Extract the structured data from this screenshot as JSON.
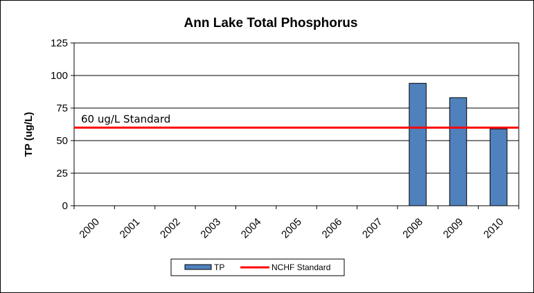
{
  "chart_data": {
    "type": "bar",
    "title": "Ann Lake Total Phosphorus",
    "xlabel": "",
    "ylabel": "TP (ug/L)",
    "categories": [
      "2000",
      "2001",
      "2002",
      "2003",
      "2004",
      "2005",
      "2006",
      "2007",
      "2008",
      "2009",
      "2010"
    ],
    "series": [
      {
        "name": "TP",
        "values": [
          null,
          null,
          null,
          null,
          null,
          null,
          null,
          null,
          94,
          83,
          59
        ],
        "color": "#4F81BD"
      }
    ],
    "reference_line": {
      "name": "NCHF Standard",
      "value": 60,
      "label": "60 ug/L Standard",
      "color": "#FF0000"
    },
    "ylim": [
      0,
      125
    ],
    "yticks": [
      0,
      25,
      50,
      75,
      100,
      125
    ],
    "grid": true,
    "legend": "bottom"
  }
}
